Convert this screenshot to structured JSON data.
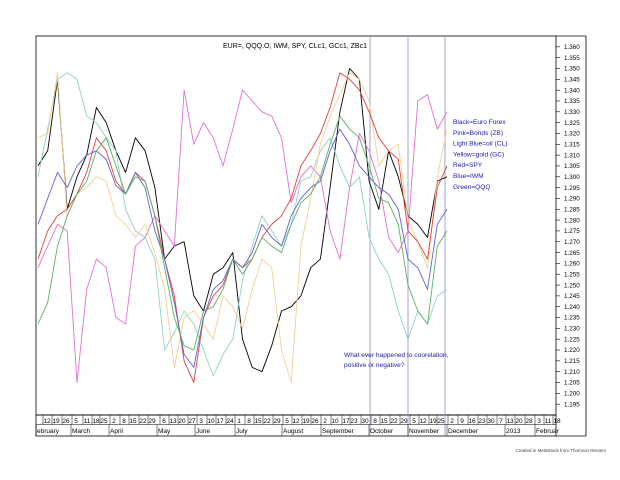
{
  "chart_data": {
    "type": "line",
    "title": "EUR=, QQQ.O, IWM, SPY, CLc1, GCc1, ZBc1",
    "ylim": [
      1.19,
      1.365
    ],
    "y_ticks": [
      "1.360",
      "1.355",
      "1.350",
      "1.345",
      "1.340",
      "1.335",
      "1.330",
      "1.325",
      "1.320",
      "1.315",
      "1.310",
      "1.305",
      "1.300",
      "1.295",
      "1.290",
      "1.285",
      "1.280",
      "1.275",
      "1.270",
      "1.265",
      "1.260",
      "1.255",
      "1.250",
      "1.245",
      "1.240",
      "1.235",
      "1.230",
      "1.225",
      "1.220",
      "1.215",
      "1.210",
      "1.205",
      "1.200",
      "1.195"
    ],
    "x_day_ticks": [
      "12",
      "19",
      "26",
      "5",
      "11",
      "18",
      "25",
      "2",
      "8",
      "15",
      "22",
      "29",
      "6",
      "13",
      "20",
      "27",
      "3",
      "10",
      "17",
      "24",
      "1",
      "8",
      "15",
      "22",
      "29",
      "5",
      "12",
      "19",
      "26",
      "2",
      "10",
      "17",
      "23",
      "30",
      "8",
      "15",
      "22",
      "29",
      "5",
      "12",
      "19",
      "25",
      "2",
      "9",
      "16",
      "23",
      "30",
      "7",
      "13",
      "20",
      "28",
      "3",
      "11",
      "18"
    ],
    "x_month_labels": [
      "ebruary",
      "March",
      "April",
      "May",
      "June",
      "July",
      "August",
      "September",
      "October",
      "November",
      "December",
      "2013",
      "Februar"
    ],
    "annotation": "What ever happened to coorelation,\npositive or negative?",
    "legend": [
      "Black=Euro Forex",
      "Pink=Bonds (ZB)",
      "Light Blue=oil (CL)",
      "Yellow=gold (GC)",
      "Red=SPY",
      "Blue=IWM",
      "Green=QQQ"
    ],
    "footer": "Created in MetaStock from Thomson Reuters",
    "x": [
      "2012-02-10",
      "2012-02-17",
      "2012-02-24",
      "2012-03-02",
      "2012-03-09",
      "2012-03-16",
      "2012-03-23",
      "2012-03-30",
      "2012-04-06",
      "2012-04-13",
      "2012-04-20",
      "2012-04-27",
      "2012-05-04",
      "2012-05-11",
      "2012-05-18",
      "2012-05-25",
      "2012-06-01",
      "2012-06-08",
      "2012-06-15",
      "2012-06-22",
      "2012-06-29",
      "2012-07-06",
      "2012-07-13",
      "2012-07-20",
      "2012-07-27",
      "2012-08-03",
      "2012-08-10",
      "2012-08-17",
      "2012-08-24",
      "2012-08-31",
      "2012-09-07",
      "2012-09-14",
      "2012-09-21",
      "2012-09-28",
      "2012-10-05",
      "2012-10-12",
      "2012-10-19",
      "2012-10-26",
      "2012-11-02",
      "2012-11-09",
      "2012-11-16",
      "2012-11-23",
      "2012-11-30"
    ],
    "series": [
      {
        "name": "Euro Forex",
        "color": "#000000",
        "values": [
          1.305,
          1.312,
          1.345,
          1.285,
          1.3,
          1.31,
          1.332,
          1.325,
          1.312,
          1.302,
          1.318,
          1.312,
          1.295,
          1.262,
          1.268,
          1.27,
          1.245,
          1.238,
          1.255,
          1.258,
          1.265,
          1.225,
          1.212,
          1.21,
          1.222,
          1.238,
          1.24,
          1.245,
          1.258,
          1.262,
          1.295,
          1.33,
          1.35,
          1.345,
          1.298,
          1.285,
          1.312,
          1.3,
          1.282,
          1.278,
          1.272,
          1.298,
          1.3
        ]
      },
      {
        "name": "Bonds (ZB)",
        "color": "#e070d0",
        "values": [
          1.258,
          1.268,
          1.278,
          1.275,
          1.205,
          1.248,
          1.262,
          1.258,
          1.235,
          1.232,
          1.268,
          1.272,
          1.282,
          1.275,
          1.268,
          1.34,
          1.315,
          1.325,
          1.318,
          1.305,
          1.322,
          1.34,
          1.335,
          1.33,
          1.328,
          1.318,
          1.288,
          1.3,
          1.305,
          1.3,
          1.275,
          1.262,
          1.295,
          1.32,
          1.312,
          1.298,
          1.272,
          1.265,
          1.275,
          1.335,
          1.338,
          1.322,
          1.33
        ]
      },
      {
        "name": "oil (CL)",
        "color": "#8fd0c8",
        "values": [
          1.3,
          1.322,
          1.345,
          1.348,
          1.345,
          1.328,
          1.325,
          1.318,
          1.312,
          1.285,
          1.275,
          1.272,
          1.262,
          1.22,
          1.228,
          1.238,
          1.232,
          1.22,
          1.208,
          1.218,
          1.225,
          1.252,
          1.268,
          1.282,
          1.275,
          1.268,
          1.278,
          1.298,
          1.3,
          1.312,
          1.318,
          1.305,
          1.295,
          1.3,
          1.272,
          1.262,
          1.255,
          1.238,
          1.225,
          1.238,
          1.232,
          1.245,
          1.248
        ]
      },
      {
        "name": "gold (GC)",
        "color": "#f0d090",
        "values": [
          1.318,
          1.32,
          1.348,
          1.282,
          1.292,
          1.295,
          1.3,
          1.298,
          1.282,
          1.278,
          1.272,
          1.278,
          1.265,
          1.248,
          1.212,
          1.235,
          1.238,
          1.232,
          1.225,
          1.245,
          1.24,
          1.23,
          1.248,
          1.262,
          1.258,
          1.22,
          1.205,
          1.268,
          1.29,
          1.315,
          1.328,
          1.338,
          1.348,
          1.345,
          1.335,
          1.305,
          1.312,
          1.315,
          1.28,
          1.27,
          1.258,
          1.3,
          1.322
        ]
      },
      {
        "name": "SPY",
        "color": "#e04040",
        "values": [
          1.262,
          1.275,
          1.282,
          1.285,
          1.292,
          1.302,
          1.318,
          1.312,
          1.298,
          1.292,
          1.302,
          1.298,
          1.282,
          1.262,
          1.245,
          1.215,
          1.205,
          1.235,
          1.245,
          1.25,
          1.262,
          1.258,
          1.262,
          1.272,
          1.278,
          1.282,
          1.29,
          1.305,
          1.312,
          1.32,
          1.332,
          1.348,
          1.345,
          1.34,
          1.33,
          1.318,
          1.312,
          1.308,
          1.275,
          1.27,
          1.262,
          1.295,
          1.305
        ]
      },
      {
        "name": "IWM",
        "color": "#6060d0",
        "values": [
          1.278,
          1.29,
          1.302,
          1.295,
          1.305,
          1.31,
          1.312,
          1.308,
          1.296,
          1.292,
          1.302,
          1.295,
          1.275,
          1.262,
          1.242,
          1.218,
          1.212,
          1.235,
          1.248,
          1.252,
          1.262,
          1.258,
          1.265,
          1.278,
          1.272,
          1.268,
          1.282,
          1.29,
          1.295,
          1.298,
          1.312,
          1.322,
          1.315,
          1.305,
          1.3,
          1.295,
          1.292,
          1.285,
          1.262,
          1.258,
          1.248,
          1.278,
          1.285
        ]
      },
      {
        "name": "QQQ",
        "color": "#58b060",
        "values": [
          1.232,
          1.242,
          1.268,
          1.282,
          1.292,
          1.298,
          1.312,
          1.318,
          1.305,
          1.292,
          1.3,
          1.298,
          1.282,
          1.258,
          1.235,
          1.222,
          1.22,
          1.238,
          1.24,
          1.248,
          1.262,
          1.255,
          1.262,
          1.272,
          1.268,
          1.265,
          1.278,
          1.288,
          1.292,
          1.3,
          1.315,
          1.328,
          1.322,
          1.318,
          1.305,
          1.29,
          1.288,
          1.278,
          1.25,
          1.238,
          1.232,
          1.268,
          1.275
        ]
      }
    ]
  }
}
